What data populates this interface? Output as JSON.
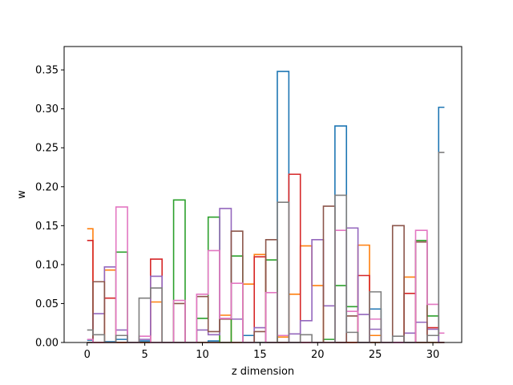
{
  "chart_data": {
    "type": "line",
    "drawstyle": "steps-mid",
    "title": "",
    "xlabel": "z dimension",
    "ylabel": "w",
    "xlim": [
      -2.0,
      32.5
    ],
    "ylim": [
      0,
      0.38
    ],
    "xticks": [
      0,
      5,
      10,
      15,
      20,
      25,
      30
    ],
    "yticks": [
      0.0,
      0.05,
      0.1,
      0.15,
      0.2,
      0.25,
      0.3,
      0.35
    ],
    "x": [
      0,
      1,
      2,
      3,
      4,
      5,
      6,
      7,
      8,
      9,
      10,
      11,
      12,
      13,
      14,
      15,
      16,
      17,
      18,
      19,
      20,
      21,
      22,
      23,
      24,
      25,
      26,
      27,
      28,
      29,
      30,
      31
    ],
    "series": [
      {
        "color": "#1f77b4",
        "values": [
          0.003,
          0.0,
          0.001,
          0.004,
          0.0,
          0.002,
          0.0,
          0.0,
          0.0,
          0.0,
          0.0,
          0.002,
          0.0,
          0.0,
          0.009,
          0.0,
          0.0,
          0.348,
          0.0,
          0.0,
          0.0,
          0.0,
          0.278,
          0.0,
          0.0,
          0.043,
          0.0,
          0.0,
          0.0,
          0.0,
          0.0,
          0.302
        ]
      },
      {
        "color": "#ff7f0e",
        "values": [
          0.146,
          0.0,
          0.093,
          0.0,
          0.0,
          0.0,
          0.052,
          0.0,
          0.0,
          0.0,
          0.0,
          0.0,
          0.035,
          0.0,
          0.075,
          0.113,
          0.0,
          0.007,
          0.062,
          0.124,
          0.073,
          0.0,
          0.0,
          0.0,
          0.125,
          0.009,
          0.0,
          0.0,
          0.084,
          0.0,
          0.0,
          0.0
        ]
      },
      {
        "color": "#2ca02c",
        "values": [
          0.0,
          0.0,
          0.0,
          0.116,
          0.0,
          0.0,
          0.0,
          0.0,
          0.183,
          0.0,
          0.031,
          0.161,
          0.0,
          0.111,
          0.0,
          0.0,
          0.106,
          0.0,
          0.0,
          0.0,
          0.0,
          0.004,
          0.073,
          0.046,
          0.0,
          0.0,
          0.0,
          0.0,
          0.0,
          0.131,
          0.034,
          0.0
        ]
      },
      {
        "color": "#d62728",
        "values": [
          0.131,
          0.0,
          0.057,
          0.0,
          0.0,
          0.0,
          0.107,
          0.0,
          0.0,
          0.0,
          0.0,
          0.0,
          0.0,
          0.0,
          0.0,
          0.11,
          0.0,
          0.0,
          0.216,
          0.0,
          0.0,
          0.0,
          0.0,
          0.0,
          0.086,
          0.0,
          0.0,
          0.0,
          0.063,
          0.0,
          0.019,
          0.0
        ]
      },
      {
        "color": "#9467bd",
        "values": [
          0.0,
          0.037,
          0.097,
          0.016,
          0.0,
          0.004,
          0.085,
          0.0,
          0.0,
          0.0,
          0.016,
          0.01,
          0.172,
          0.03,
          0.0,
          0.019,
          0.0,
          0.0,
          0.011,
          0.028,
          0.132,
          0.047,
          0.0,
          0.147,
          0.036,
          0.017,
          0.0,
          0.0,
          0.012,
          0.026,
          0.017,
          0.0
        ]
      },
      {
        "color": "#8c564b",
        "values": [
          0.0,
          0.078,
          0.0,
          0.0,
          0.0,
          0.0,
          0.0,
          0.0,
          0.05,
          0.0,
          0.059,
          0.014,
          0.03,
          0.143,
          0.0,
          0.014,
          0.132,
          0.0,
          0.0,
          0.0,
          0.0,
          0.175,
          0.0,
          0.034,
          0.0,
          0.0,
          0.0,
          0.15,
          0.0,
          0.129,
          0.0,
          0.0
        ]
      },
      {
        "color": "#e377c2",
        "values": [
          0.004,
          0.0,
          0.0,
          0.174,
          0.0,
          0.008,
          0.0,
          0.0,
          0.054,
          0.0,
          0.062,
          0.118,
          0.031,
          0.076,
          0.0,
          0.0,
          0.064,
          0.009,
          0.0,
          0.0,
          0.0,
          0.0,
          0.144,
          0.04,
          0.0,
          0.03,
          0.0,
          0.0,
          0.0,
          0.144,
          0.049,
          0.012
        ]
      },
      {
        "color": "#7f7f7f",
        "values": [
          0.016,
          0.01,
          0.0,
          0.009,
          0.0,
          0.057,
          0.07,
          0.0,
          0.0,
          0.0,
          0.0,
          0.0,
          0.0,
          0.0,
          0.0,
          0.0,
          0.0,
          0.18,
          0.0,
          0.01,
          0.0,
          0.0,
          0.189,
          0.013,
          0.0,
          0.065,
          0.0,
          0.008,
          0.0,
          0.0,
          0.009,
          0.244
        ]
      }
    ]
  }
}
